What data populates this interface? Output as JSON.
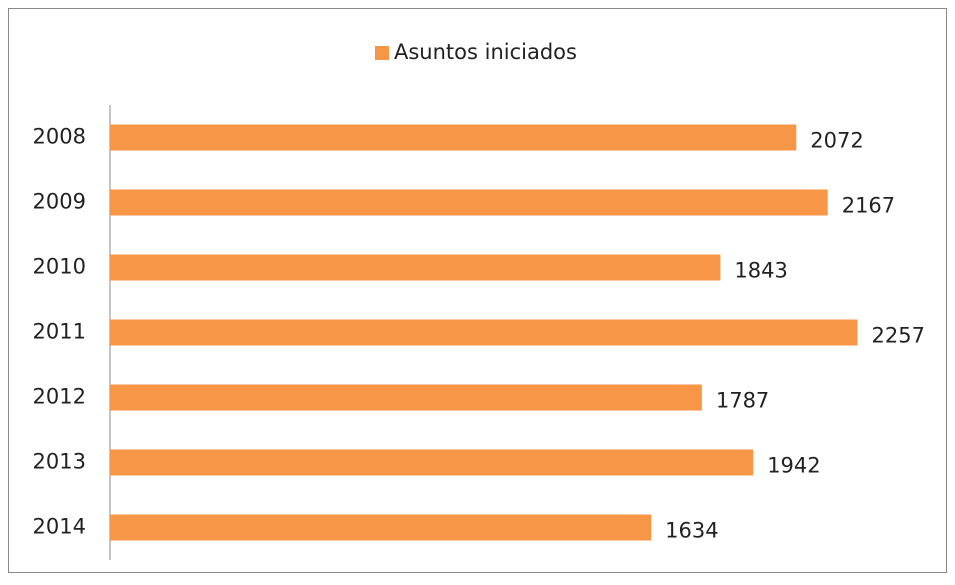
{
  "chart_data": {
    "type": "barh",
    "categories": [
      "2008",
      "2009",
      "2010",
      "2011",
      "2012",
      "2013",
      "2014"
    ],
    "series": [
      {
        "name": "Asuntos iniciados",
        "color": "#f79646",
        "values": [
          2072,
          2167,
          1843,
          2257,
          1787,
          1942,
          1634
        ]
      }
    ],
    "xlim": [
      0,
      2500
    ],
    "legend": "top"
  }
}
